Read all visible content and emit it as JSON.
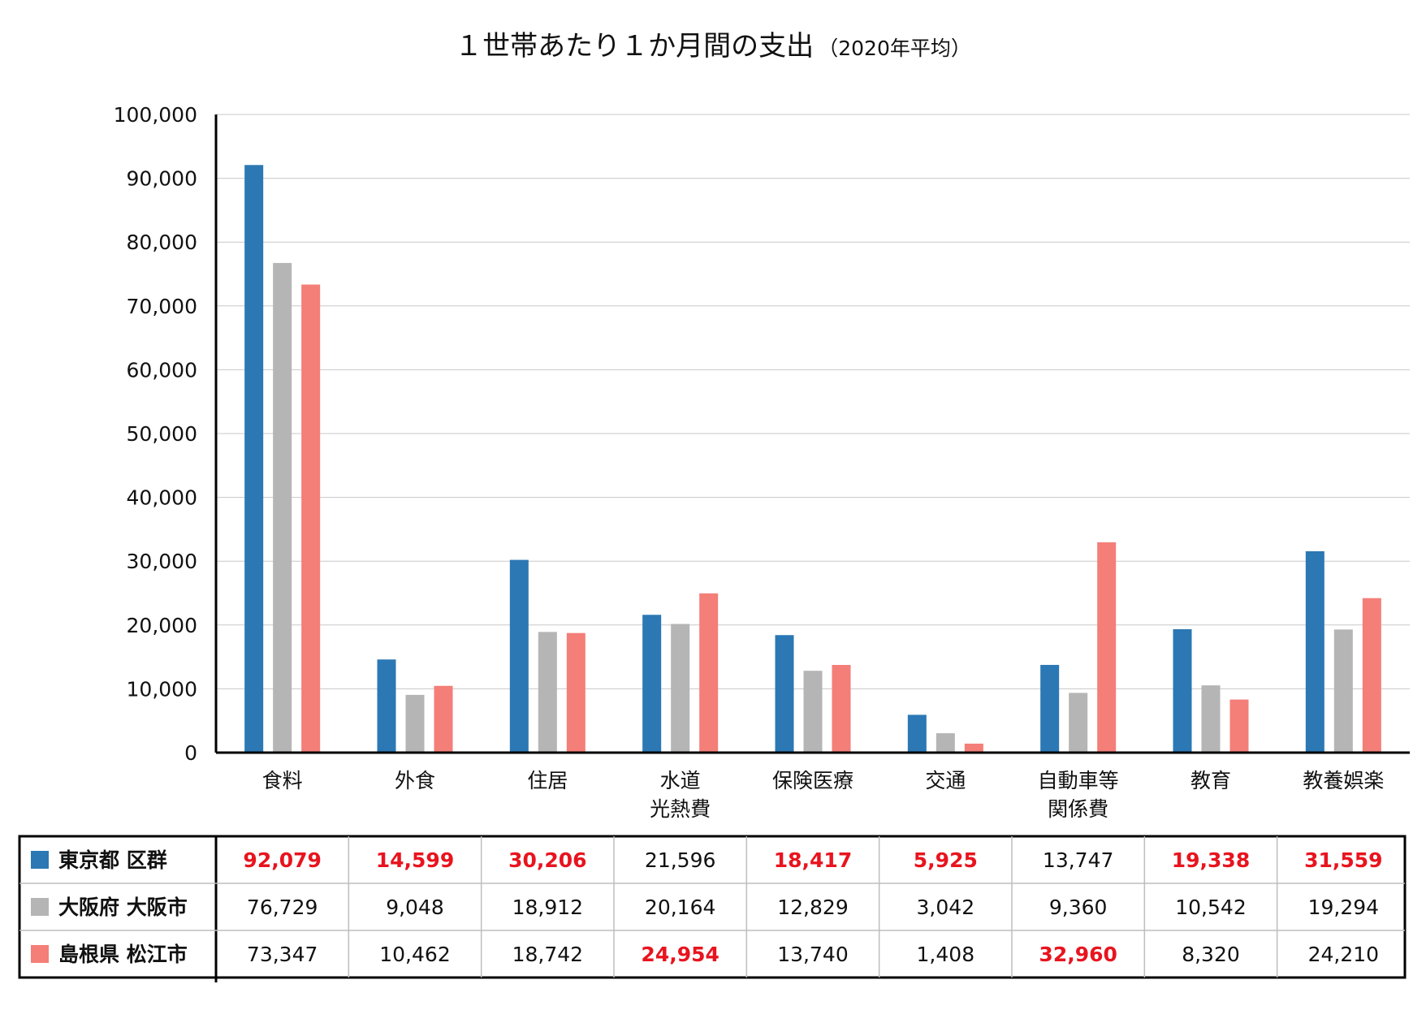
{
  "chart_data": {
    "type": "bar",
    "title": "１世帯あたり１か月間の支出",
    "subtitle": "（2020年平均）",
    "categories": [
      [
        "食料"
      ],
      [
        "外食"
      ],
      [
        "住居"
      ],
      [
        "水道",
        "光熱費"
      ],
      [
        "保険医療"
      ],
      [
        "交通"
      ],
      [
        "自動車等",
        "関係費"
      ],
      [
        "教育"
      ],
      [
        "教養娯楽"
      ]
    ],
    "series": [
      {
        "name": "東京都 区群",
        "color": "#2b78b4",
        "values": [
          92079,
          14599,
          30206,
          21596,
          18417,
          5925,
          13747,
          19338,
          31559
        ],
        "highlight": [
          true,
          true,
          true,
          false,
          true,
          true,
          false,
          true,
          true
        ]
      },
      {
        "name": "大阪府 大阪市",
        "color": "#b5b5b5",
        "values": [
          76729,
          9048,
          18912,
          20164,
          12829,
          3042,
          9360,
          10542,
          19294
        ],
        "highlight": [
          false,
          false,
          false,
          false,
          false,
          false,
          false,
          false,
          false
        ]
      },
      {
        "name": "島根県 松江市",
        "color": "#f47e78",
        "values": [
          73347,
          10462,
          18742,
          24954,
          13740,
          1408,
          32960,
          8320,
          24210
        ],
        "highlight": [
          false,
          false,
          false,
          true,
          false,
          false,
          true,
          false,
          false
        ]
      }
    ],
    "ylim": [
      0,
      100000
    ],
    "yticks": [
      0,
      10000,
      20000,
      30000,
      40000,
      50000,
      60000,
      70000,
      80000,
      90000,
      100000
    ],
    "grid": true,
    "legend": "data table below chart"
  }
}
